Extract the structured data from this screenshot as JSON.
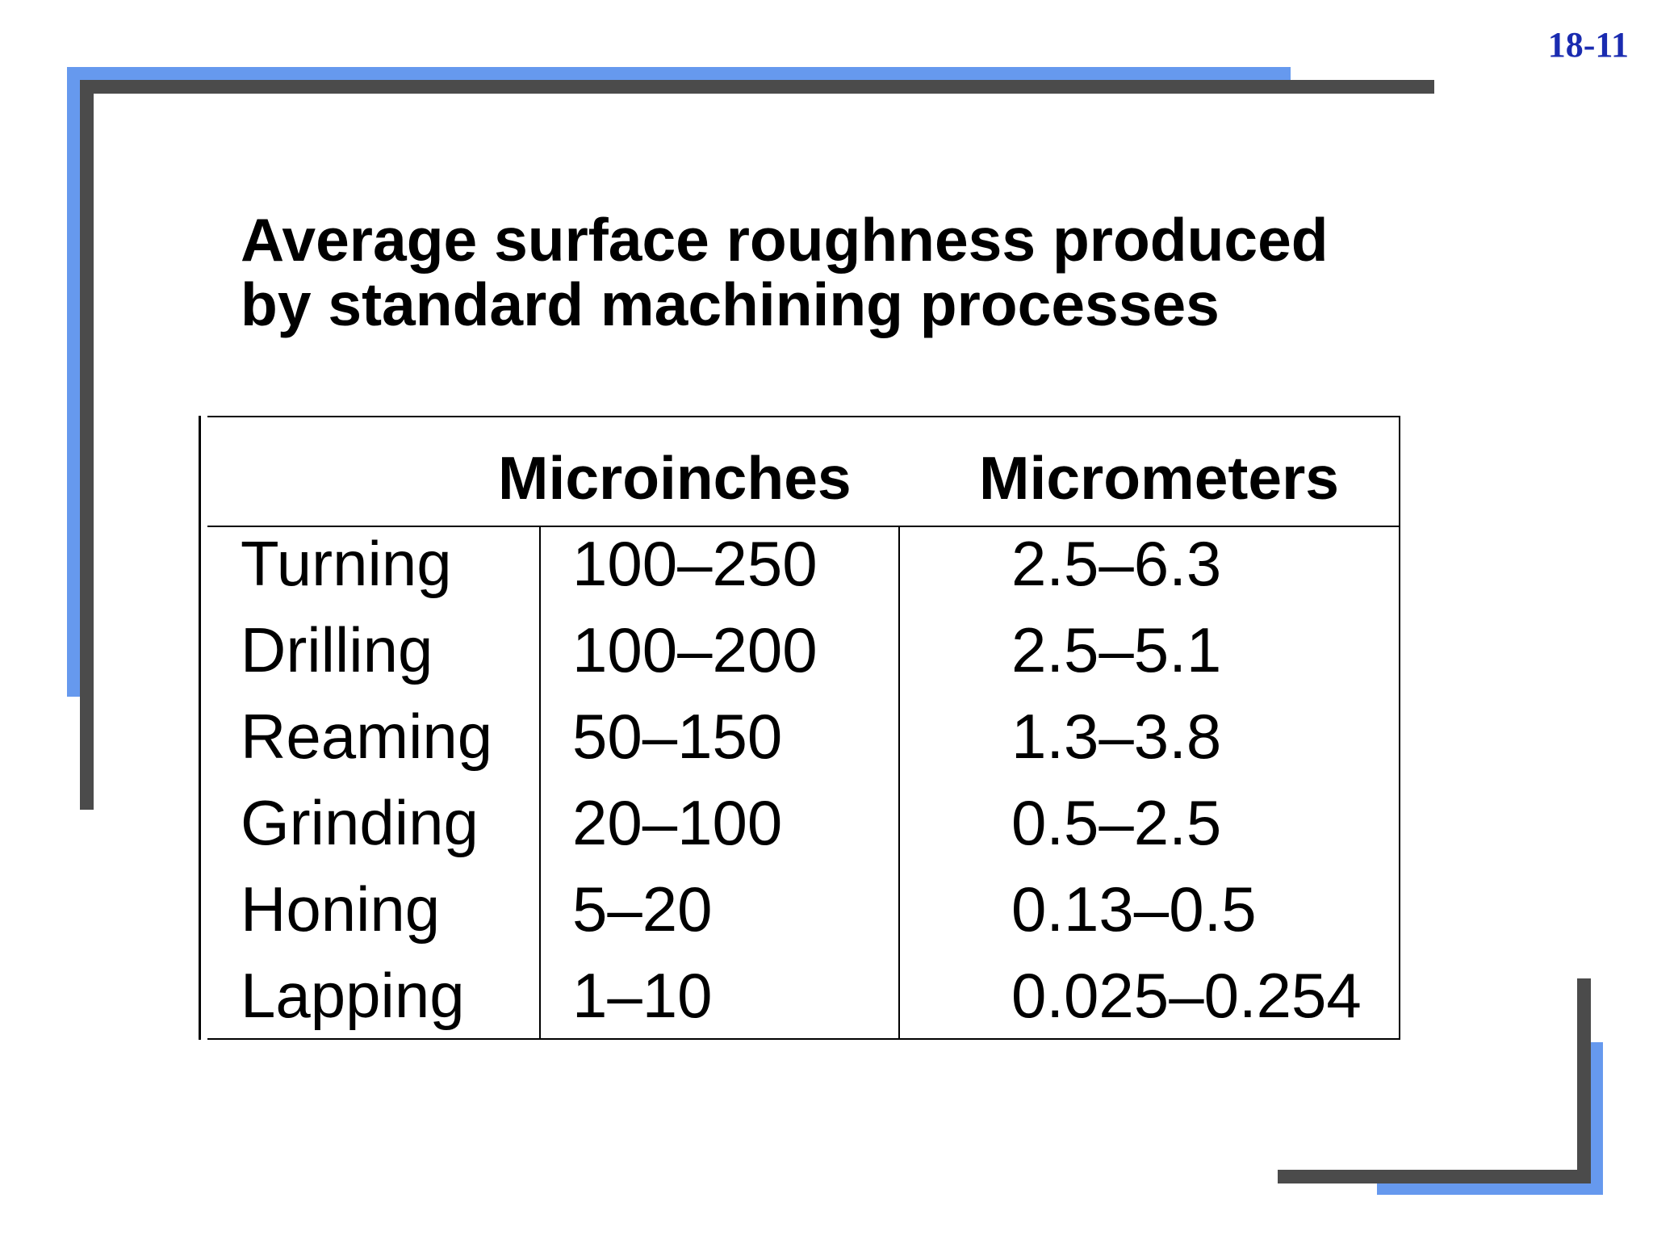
{
  "slide_number": "18-11",
  "title": {
    "line1": "Average surface roughness produced",
    "line2": "by standard machining processes"
  },
  "table": {
    "headers": [
      "",
      "Microinches",
      "Micrometers"
    ],
    "rows": [
      {
        "process": "Turning",
        "microinches": "100–250",
        "micrometers": "2.5–6.3"
      },
      {
        "process": "Drilling",
        "microinches": "100–200",
        "micrometers": "2.5–5.1"
      },
      {
        "process": "Reaming",
        "microinches": "50–150",
        "micrometers": "1.3–3.8"
      },
      {
        "process": "Grinding",
        "microinches": "20–100",
        "micrometers": "0.5–2.5"
      },
      {
        "process": "Honing",
        "microinches": "5–20",
        "micrometers": "0.13–0.5"
      },
      {
        "process": "Lapping",
        "microinches": "1–10",
        "micrometers": "0.025–0.254"
      }
    ]
  },
  "colors": {
    "frame_blue": "#6699ee",
    "frame_grey": "#4b4b4b",
    "slide_number": "#1a2bb0",
    "text": "#000000",
    "background": "#ffffff"
  }
}
